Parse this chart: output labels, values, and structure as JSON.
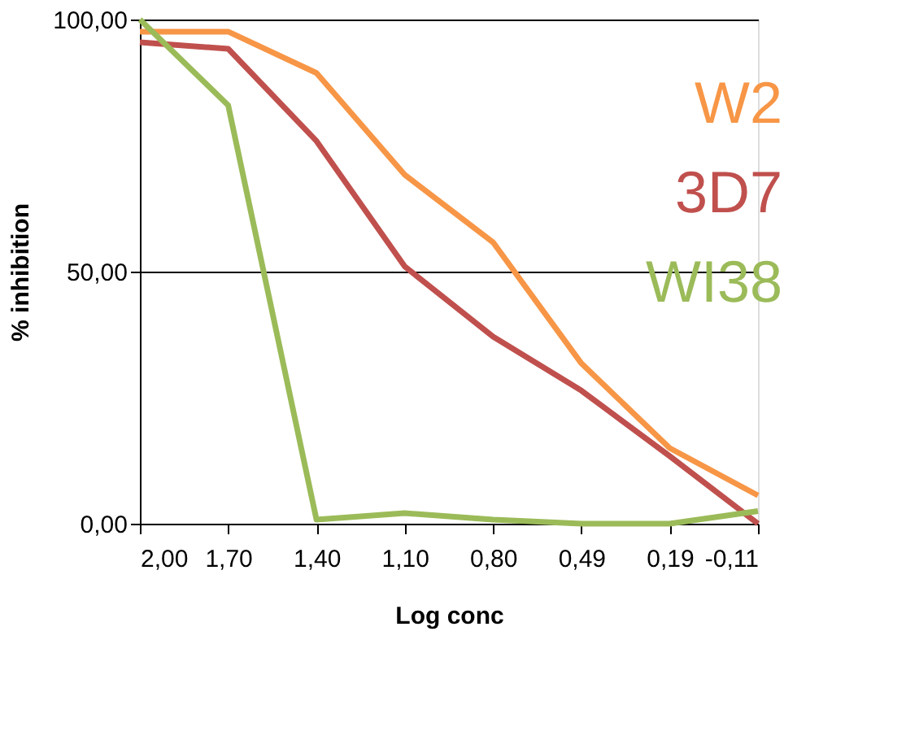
{
  "chart_data": {
    "type": "line",
    "xlabel": "Log conc",
    "ylabel": "% inhibition",
    "categories": [
      "2,00",
      "1,70",
      "1,40",
      "1,10",
      "0,80",
      "0,49",
      "0,19",
      "-0,11"
    ],
    "series": [
      {
        "name": "W2",
        "color": "#f79646",
        "values": [
          97.6,
          97.6,
          89.4,
          69.2,
          55.8,
          31.8,
          15,
          5.6
        ]
      },
      {
        "name": "3D7",
        "color": "#c0504d",
        "values": [
          95.5,
          94.2,
          75.9,
          51,
          37.1,
          26.4,
          13.4,
          0
        ]
      },
      {
        "name": "WI38",
        "color": "#9bbb59",
        "values": [
          100,
          83,
          0.8,
          2.1,
          0.8,
          0,
          0,
          2.5
        ]
      }
    ],
    "ylim": [
      0,
      100
    ],
    "yticks": [
      {
        "value": 0,
        "label": "0,00"
      },
      {
        "value": 50,
        "label": "50,00"
      },
      {
        "value": 100,
        "label": "100,00"
      }
    ],
    "grid": "y",
    "legend": "top right",
    "marker": "none",
    "line_style": "solid"
  }
}
